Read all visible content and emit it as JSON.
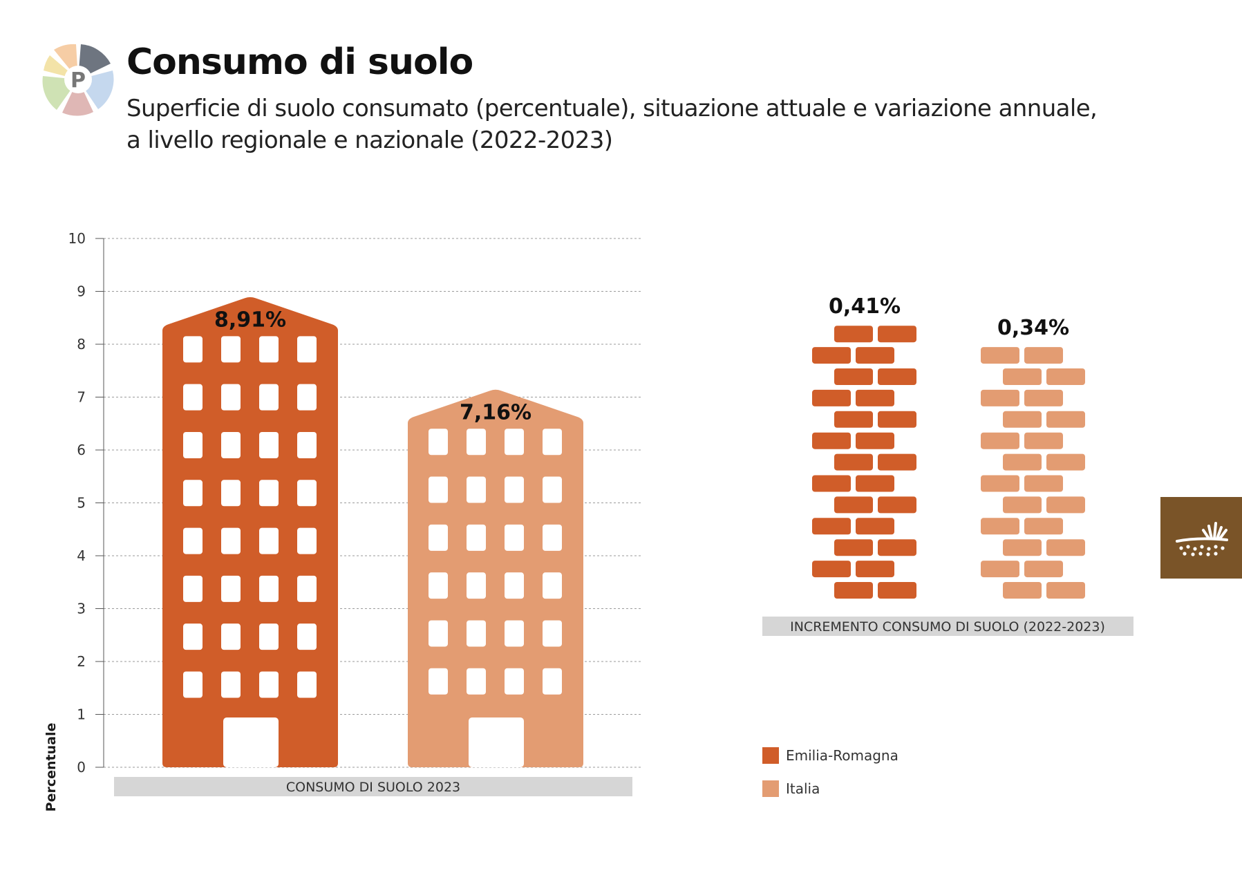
{
  "header": {
    "title": "Consumo di suolo",
    "subtitle_line1": "Superficie di suolo consumato (percentuale), situazione attuale e variazione annuale,",
    "subtitle_line2": "a livello regionale e nazionale (2022-2023)",
    "logo_letter": "P"
  },
  "colors": {
    "emilia_romagna": "#d05d29",
    "italia": "#e39c72",
    "side_tab": "#7a5428"
  },
  "chart_data": [
    {
      "type": "bar",
      "panel_label": "CONSUMO DI SUOLO 2023",
      "ylabel": "Percentuale",
      "ylim": [
        0,
        10
      ],
      "yticks": [
        0,
        1,
        2,
        3,
        4,
        5,
        6,
        7,
        8,
        9,
        10
      ],
      "grid": true,
      "series": [
        {
          "name": "Emilia-Romagna",
          "value": 8.91,
          "label": "8,91%"
        },
        {
          "name": "Italia",
          "value": 7.16,
          "label": "7,16%"
        }
      ]
    },
    {
      "type": "bar",
      "panel_label": "INCREMENTO CONSUMO DI SUOLO (2022-2023)",
      "series": [
        {
          "name": "Emilia-Romagna",
          "value": 0.41,
          "label": "0,41%"
        },
        {
          "name": "Italia",
          "value": 0.34,
          "label": "0,34%"
        }
      ]
    }
  ],
  "legend": {
    "placement": "bottom-right",
    "items": [
      "Emilia-Romagna",
      "Italia"
    ]
  },
  "icons": {
    "logo": "circular-segments-logo",
    "side_tab": "soil-plant-icon"
  }
}
